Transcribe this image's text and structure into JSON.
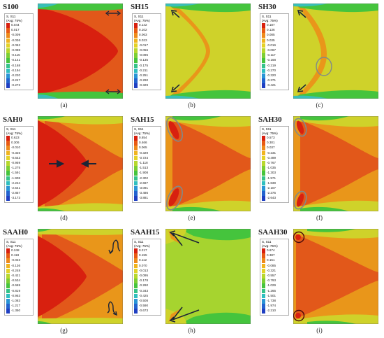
{
  "colors": {
    "dark_red": "#d8200f",
    "orange_red": "#e2581a",
    "orange": "#e9961a",
    "yellow": "#cfd22a",
    "yellow_green": "#a6d42f",
    "green": "#45c43d",
    "cyan": "#38c0b8",
    "blue": "#2053c8",
    "arrow": "#1c2436",
    "circle_gray": "#808a8a",
    "circle_dark": "#4a0a0a"
  },
  "panels": [
    {
      "title": "S100",
      "caption": "(a)",
      "legend_header": [
        "S, S11",
        "(Avg: 75%)"
      ],
      "legend_values": [
        "0.044",
        "0.017",
        "-0.009",
        "-0.036",
        "-0.062",
        "-0.088",
        "-0.115",
        "-0.141",
        "-0.168",
        "-0.194",
        "-0.220",
        "-0.247",
        "-0.273"
      ]
    },
    {
      "title": "SH15",
      "caption": "(b)",
      "legend_header": [
        "S, S11",
        "(Avg: 75%)"
      ],
      "legend_values": [
        "0.142",
        "0.102",
        "0.063",
        "0.023",
        "-0.017",
        "-0.056",
        "-0.096",
        "-0.135",
        "-0.175",
        "-0.211",
        "-0.251",
        "-0.290",
        "-0.329"
      ]
    },
    {
      "title": "SH30",
      "caption": "(c)",
      "legend_header": [
        "S, S11",
        "(Avg: 75%)"
      ],
      "legend_values": [
        "0.187",
        "0.136",
        "0.085",
        "0.035",
        "-0.016",
        "-0.067",
        "-0.117",
        "-0.168",
        "-0.219",
        "-0.270",
        "-0.320",
        "-0.371",
        "-0.421"
      ]
    },
    {
      "title": "SAH0",
      "caption": "(d)",
      "legend_header": [
        "S, S11",
        "(Avg: 75%)"
      ],
      "legend_values": [
        "0.623",
        "0.306",
        "-0.010",
        "-0.326",
        "-0.643",
        "-0.959",
        "-1.275",
        "-1.591",
        "-1.908",
        "-2.224",
        "-2.541",
        "-2.857",
        "-3.173"
      ]
    },
    {
      "title": "SAH15",
      "caption": "(e)",
      "legend_header": [
        "S, S11",
        "(Avg: 75%)"
      ],
      "legend_values": [
        "0.854",
        "0.466",
        "0.065",
        "-0.329",
        "-0.724",
        "-1.118",
        "-1.513",
        "-1.908",
        "-2.302",
        "-2.697",
        "-3.091",
        "-3.486",
        "-3.881"
      ]
    },
    {
      "title": "SAH30",
      "caption": "(f)",
      "legend_header": [
        "S, S11",
        "(Avg: 75%)"
      ],
      "legend_values": [
        "0.573",
        "0.301",
        "0.037",
        "-0.231",
        "-0.499",
        "-0.767",
        "-1.035",
        "-1.303",
        "-1.571",
        "-1.839",
        "-2.107",
        "-2.375",
        "-2.643"
      ]
    },
    {
      "title": "SAAH0",
      "caption": "(g)",
      "legend_header": [
        "S, S11",
        "(Avg: 75%)"
      ],
      "legend_values": [
        "0.248",
        "0.118",
        "-0.023",
        "-0.136",
        "-0.248",
        "-0.421",
        "-0.534",
        "-0.669",
        "-0.819",
        "-0.953",
        "-1.083",
        "-1.217",
        "-1.350"
      ]
    },
    {
      "title": "SAAH15",
      "caption": "(h)",
      "legend_header": [
        "S, S11",
        "(Avg: 75%)"
      ],
      "legend_values": [
        "0.217",
        "0.155",
        "0.112",
        "0.070",
        "-0.013",
        "-0.095",
        "-0.178",
        "-0.260",
        "-0.343",
        "-0.425",
        "-0.508",
        "-0.590",
        "-0.673"
      ]
    },
    {
      "title": "SAAH30",
      "caption": "(i)",
      "legend_header": [
        "S, S11",
        "(Avg: 75%)"
      ],
      "legend_values": [
        "0.674",
        "0.387",
        "0.151",
        "-0.085",
        "-0.321",
        "-0.557",
        "-0.793",
        "-1.029",
        "-1.265",
        "-1.501",
        "-1.738",
        "-1.974",
        "-2.210"
      ]
    }
  ]
}
